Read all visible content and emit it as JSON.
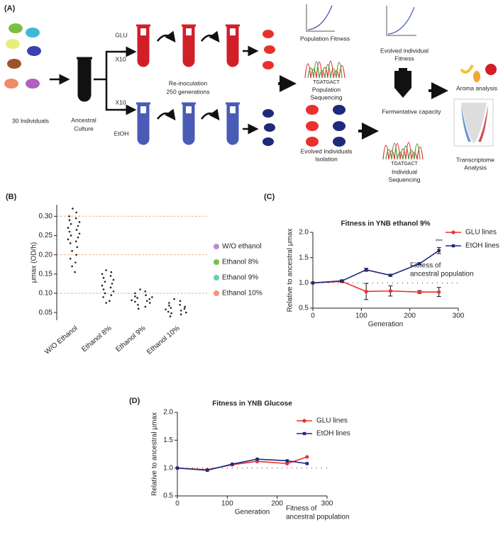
{
  "diagram": {
    "panel_label": "(A)",
    "start": "30 Individuals",
    "ancestor": [
      "Ancestral",
      "Culture"
    ],
    "branches": [
      {
        "name": "GLU",
        "repeat": "X10"
      },
      {
        "name": "EtOH",
        "repeat": "X10"
      }
    ],
    "reinoculation": [
      "Re-inoculation",
      "250 generations"
    ],
    "population_fitness": "Population Fitness",
    "sequence_a": "TGATGACT",
    "population_sequencing": [
      "Population",
      "Sequencing"
    ],
    "isolation": [
      "Evolved Individuals",
      "Isolation"
    ],
    "evolved_fitness": [
      "Evolved individual",
      "Fitness"
    ],
    "fermentative": "Fermentative capacity",
    "sequence_b": "TGATGACT",
    "individual_sequencing": [
      "Individual",
      "Sequencing"
    ],
    "aroma": "Aroma analysis",
    "transcriptome": [
      "Transcriptome",
      "Analysis"
    ]
  },
  "chart_data": [
    {
      "type": "violin",
      "panel_label": "(B)",
      "y_label": "μmax (OD/h)",
      "categories": [
        "W/O Ethanol",
        "Ethanol 8%",
        "Ethanol 9%",
        "Ethanol 10%"
      ],
      "series": [
        {
          "name": "W/O ethanol",
          "color": "#b48fd6",
          "values": [
            0.32,
            0.31,
            0.3,
            0.295,
            0.29,
            0.285,
            0.28,
            0.275,
            0.27,
            0.265,
            0.26,
            0.255,
            0.25,
            0.245,
            0.24,
            0.235,
            0.23,
            0.22,
            0.21,
            0.2,
            0.19,
            0.18,
            0.17,
            0.155
          ]
        },
        {
          "name": "Ethanol 8%",
          "color": "#7ac143",
          "values": [
            0.16,
            0.155,
            0.15,
            0.145,
            0.14,
            0.135,
            0.13,
            0.125,
            0.12,
            0.115,
            0.11,
            0.105,
            0.1,
            0.095,
            0.09,
            0.08,
            0.075
          ]
        },
        {
          "name": "Ethanol 9%",
          "color": "#5fd1b5",
          "values": [
            0.11,
            0.105,
            0.1,
            0.095,
            0.092,
            0.09,
            0.088,
            0.085,
            0.082,
            0.08,
            0.078,
            0.075,
            0.07,
            0.065,
            0.06
          ]
        },
        {
          "name": "Ethanol 10%",
          "color": "#f2937c",
          "values": [
            0.085,
            0.08,
            0.075,
            0.07,
            0.068,
            0.065,
            0.062,
            0.06,
            0.058,
            0.055,
            0.052,
            0.05,
            0.048,
            0.045,
            0.04
          ]
        }
      ],
      "ylim": [
        0.03,
        0.33
      ],
      "yticks": [
        0.05,
        {
          "value": 0.1,
          "label": "0.10"
        },
        0.15,
        {
          "value": 0.2,
          "label": "0.20"
        },
        0.25,
        {
          "value": 0.3,
          "label": "0.30"
        }
      ],
      "grid_at": [
        0.1,
        0.2,
        0.3
      ],
      "grid_color": "#f4b183",
      "legend": "right"
    },
    {
      "type": "line",
      "panel_label": "(C)",
      "title": "Fitness in YNB ethanol 9%",
      "x_label": "Generation",
      "y_label": "Relative to ancestral μmax",
      "series": [
        {
          "name": "GLU lines",
          "color": "#e8312f",
          "marker": "circle",
          "x": [
            0,
            60,
            110,
            160,
            220,
            260
          ],
          "values": [
            1.0,
            1.03,
            0.83,
            0.84,
            0.82,
            0.82
          ],
          "errors": [
            0,
            0.02,
            0.16,
            0.1,
            0.03,
            0.09
          ]
        },
        {
          "name": "EtOH lines",
          "color": "#1f2a7a",
          "marker": "square",
          "x": [
            0,
            60,
            110,
            160,
            220,
            260
          ],
          "values": [
            1.0,
            1.04,
            1.26,
            1.15,
            1.38,
            1.64
          ],
          "errors": [
            0,
            0.02,
            0.03,
            0.02,
            0.02,
            0.06
          ]
        }
      ],
      "xlim": [
        0,
        300
      ],
      "xticks": [
        0,
        100,
        200,
        300
      ],
      "ylim": [
        0.5,
        2.0
      ],
      "yticks": [
        0.5,
        {
          "value": 1,
          "label": "1.0"
        },
        1.5,
        {
          "value": 2,
          "label": "2.0"
        }
      ],
      "reference_line": 1,
      "reference_label": [
        "Fitness of",
        "ancestral population"
      ],
      "annotation": "***",
      "legend": "upper right"
    },
    {
      "type": "line",
      "panel_label": "(D)",
      "title": "Fitness in YNB Glucose",
      "x_label": "Generation",
      "y_label": "Relative to ancestral μmax",
      "series": [
        {
          "name": "GLU lines",
          "color": "#e8312f",
          "marker": "circle",
          "x": [
            0,
            60,
            110,
            160,
            220,
            260
          ],
          "values": [
            1.0,
            0.97,
            1.06,
            1.12,
            1.08,
            1.2
          ]
        },
        {
          "name": "EtOH lines",
          "color": "#1f2a7a",
          "marker": "square",
          "x": [
            0,
            60,
            110,
            160,
            220,
            260
          ],
          "values": [
            1.0,
            0.96,
            1.07,
            1.16,
            1.13,
            1.08
          ]
        }
      ],
      "xlim": [
        0,
        300
      ],
      "xticks": [
        0,
        100,
        200,
        300
      ],
      "ylim": [
        0.5,
        2.0
      ],
      "yticks": [
        0.5,
        {
          "value": 1,
          "label": "1.0"
        },
        1.5,
        {
          "value": 2,
          "label": "2.0"
        }
      ],
      "reference_line": 1,
      "reference_label": [
        "Fitness of",
        "ancestral population"
      ],
      "legend": "upper center"
    }
  ]
}
